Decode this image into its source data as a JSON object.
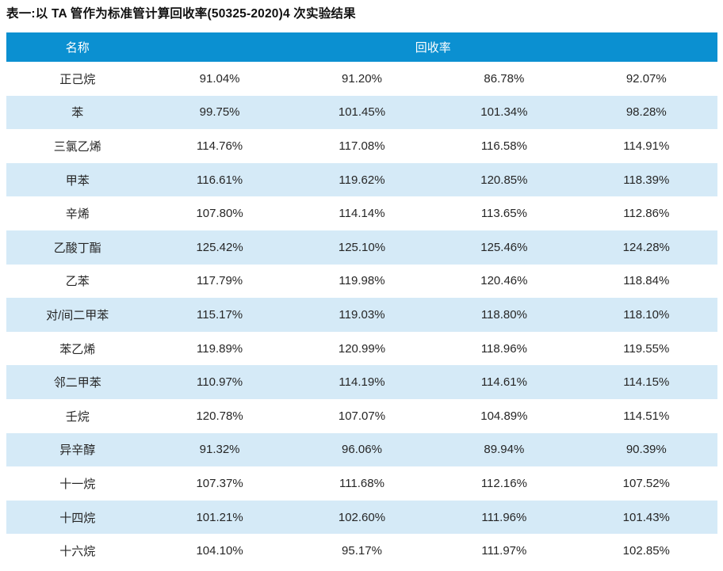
{
  "title": "表一:以 TA 管作为标准管计算回收率(50325-2020)4 次实验结果",
  "colors": {
    "header_bg": "#0b90d1",
    "row_alt_bg": "#d5eaf7",
    "header_text": "#ffffff",
    "body_text": "#262626"
  },
  "table": {
    "header": {
      "name_col": "名称",
      "recovery_col": "回收率"
    },
    "rows": [
      {
        "name": "正己烷",
        "values": [
          "91.04%",
          "91.20%",
          "86.78%",
          "92.07%"
        ]
      },
      {
        "name": "苯",
        "values": [
          "99.75%",
          "101.45%",
          "101.34%",
          "98.28%"
        ]
      },
      {
        "name": "三氯乙烯",
        "values": [
          "114.76%",
          "117.08%",
          "116.58%",
          "114.91%"
        ]
      },
      {
        "name": "甲苯",
        "values": [
          "116.61%",
          "119.62%",
          "120.85%",
          "118.39%"
        ]
      },
      {
        "name": "辛烯",
        "values": [
          "107.80%",
          "114.14%",
          "113.65%",
          "112.86%"
        ]
      },
      {
        "name": "乙酸丁酯",
        "values": [
          "125.42%",
          "125.10%",
          "125.46%",
          "124.28%"
        ]
      },
      {
        "name": "乙苯",
        "values": [
          "117.79%",
          "119.98%",
          "120.46%",
          "118.84%"
        ]
      },
      {
        "name": "对/间二甲苯",
        "values": [
          "115.17%",
          "119.03%",
          "118.80%",
          "118.10%"
        ]
      },
      {
        "name": "苯乙烯",
        "values": [
          "119.89%",
          "120.99%",
          "118.96%",
          "119.55%"
        ]
      },
      {
        "name": "邻二甲苯",
        "values": [
          "110.97%",
          "114.19%",
          "114.61%",
          "114.15%"
        ]
      },
      {
        "name": "壬烷",
        "values": [
          "120.78%",
          "107.07%",
          "104.89%",
          "114.51%"
        ]
      },
      {
        "name": "异辛醇",
        "values": [
          "91.32%",
          "96.06%",
          "89.94%",
          "90.39%"
        ]
      },
      {
        "name": "十一烷",
        "values": [
          "107.37%",
          "111.68%",
          "112.16%",
          "107.52%"
        ]
      },
      {
        "name": "十四烷",
        "values": [
          "101.21%",
          "102.60%",
          "111.96%",
          "101.43%"
        ]
      },
      {
        "name": "十六烷",
        "values": [
          "104.10%",
          "95.17%",
          "111.97%",
          "102.85%"
        ]
      }
    ]
  }
}
